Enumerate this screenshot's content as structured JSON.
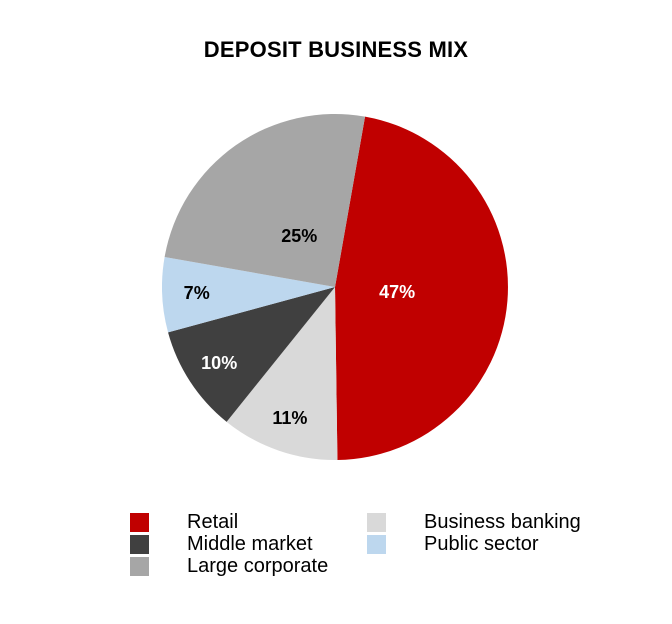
{
  "chart_data": {
    "type": "pie",
    "title": "DEPOSIT BUSINESS MIX",
    "start_angle_deg": 10,
    "direction": "clockwise",
    "background_color": "#ffffff",
    "title_color": "#000000",
    "slices": [
      {
        "label": "Retail",
        "value": 47,
        "label_text": "47%",
        "color": "#C00000",
        "label_color": "#FFFFFF",
        "label_radius": 0.36
      },
      {
        "label": "Business banking",
        "value": 11,
        "label_text": "11%",
        "color": "#D9D9D9",
        "label_color": "#000000",
        "label_radius": 0.8
      },
      {
        "label": "Middle market",
        "value": 10,
        "label_text": "10%",
        "color": "#404040",
        "label_color": "#FFFFFF",
        "label_radius": 0.8
      },
      {
        "label": "Public sector",
        "value": 7,
        "label_text": "7%",
        "color": "#BDD7EE",
        "label_color": "#000000",
        "label_radius": 0.8
      },
      {
        "label": "Large corporate",
        "value": 25,
        "label_text": "25%",
        "color": "#A6A6A6",
        "label_color": "#000000",
        "label_radius": 0.36
      }
    ],
    "legend": {
      "position": "bottom",
      "columns": [
        [
          0,
          2,
          4
        ],
        [
          1,
          3
        ]
      ]
    }
  }
}
